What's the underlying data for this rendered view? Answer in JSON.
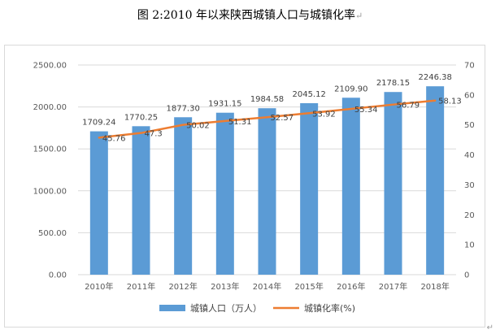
{
  "title": "图 2:2010 年以来陕西城镇人口与城镇化率",
  "title_mark": "↵",
  "para_mark": "↵",
  "chart_data": {
    "type": "bar",
    "title": "",
    "categories": [
      "2010年",
      "2011年",
      "2012年",
      "2013年",
      "2014年",
      "2015年",
      "2016年",
      "2017年",
      "2018年"
    ],
    "series": [
      {
        "name": "城镇人口（万人）",
        "type": "bar",
        "axis": "left",
        "values": [
          1709.24,
          1770.25,
          1877.3,
          1931.15,
          1984.58,
          2045.12,
          2109.9,
          2178.15,
          2246.38
        ],
        "labels": [
          "1709.24",
          "1770.25",
          "1877.30",
          "1931.15",
          "1984.58",
          "2045.12",
          "2109.90",
          "2178.15",
          "2246.38"
        ],
        "color": "#5b9bd5"
      },
      {
        "name": "城镇化率(%)",
        "type": "line",
        "axis": "right",
        "values": [
          45.76,
          47.3,
          50.02,
          51.31,
          52.57,
          53.92,
          55.34,
          56.79,
          58.13
        ],
        "labels": [
          "45.76",
          "47.3",
          "50.02",
          "51.31",
          "52.57",
          "53.92",
          "55.34",
          "56.79",
          "58.13"
        ],
        "color": "#ed7d31"
      }
    ],
    "y_left": {
      "ylim": [
        0,
        2500
      ],
      "ticks": [
        0,
        500,
        1000,
        1500,
        2000,
        2500
      ],
      "tick_labels": [
        "0.00",
        "500.00",
        "1000.00",
        "1500.00",
        "2000.00",
        "2500.00"
      ]
    },
    "y_right": {
      "ylim": [
        0,
        70
      ],
      "ticks": [
        0,
        10,
        20,
        30,
        40,
        50,
        60,
        70
      ],
      "tick_labels": [
        "0",
        "10",
        "20",
        "30",
        "40",
        "50",
        "60",
        "70"
      ]
    },
    "grid": true,
    "legend": "bottom"
  }
}
